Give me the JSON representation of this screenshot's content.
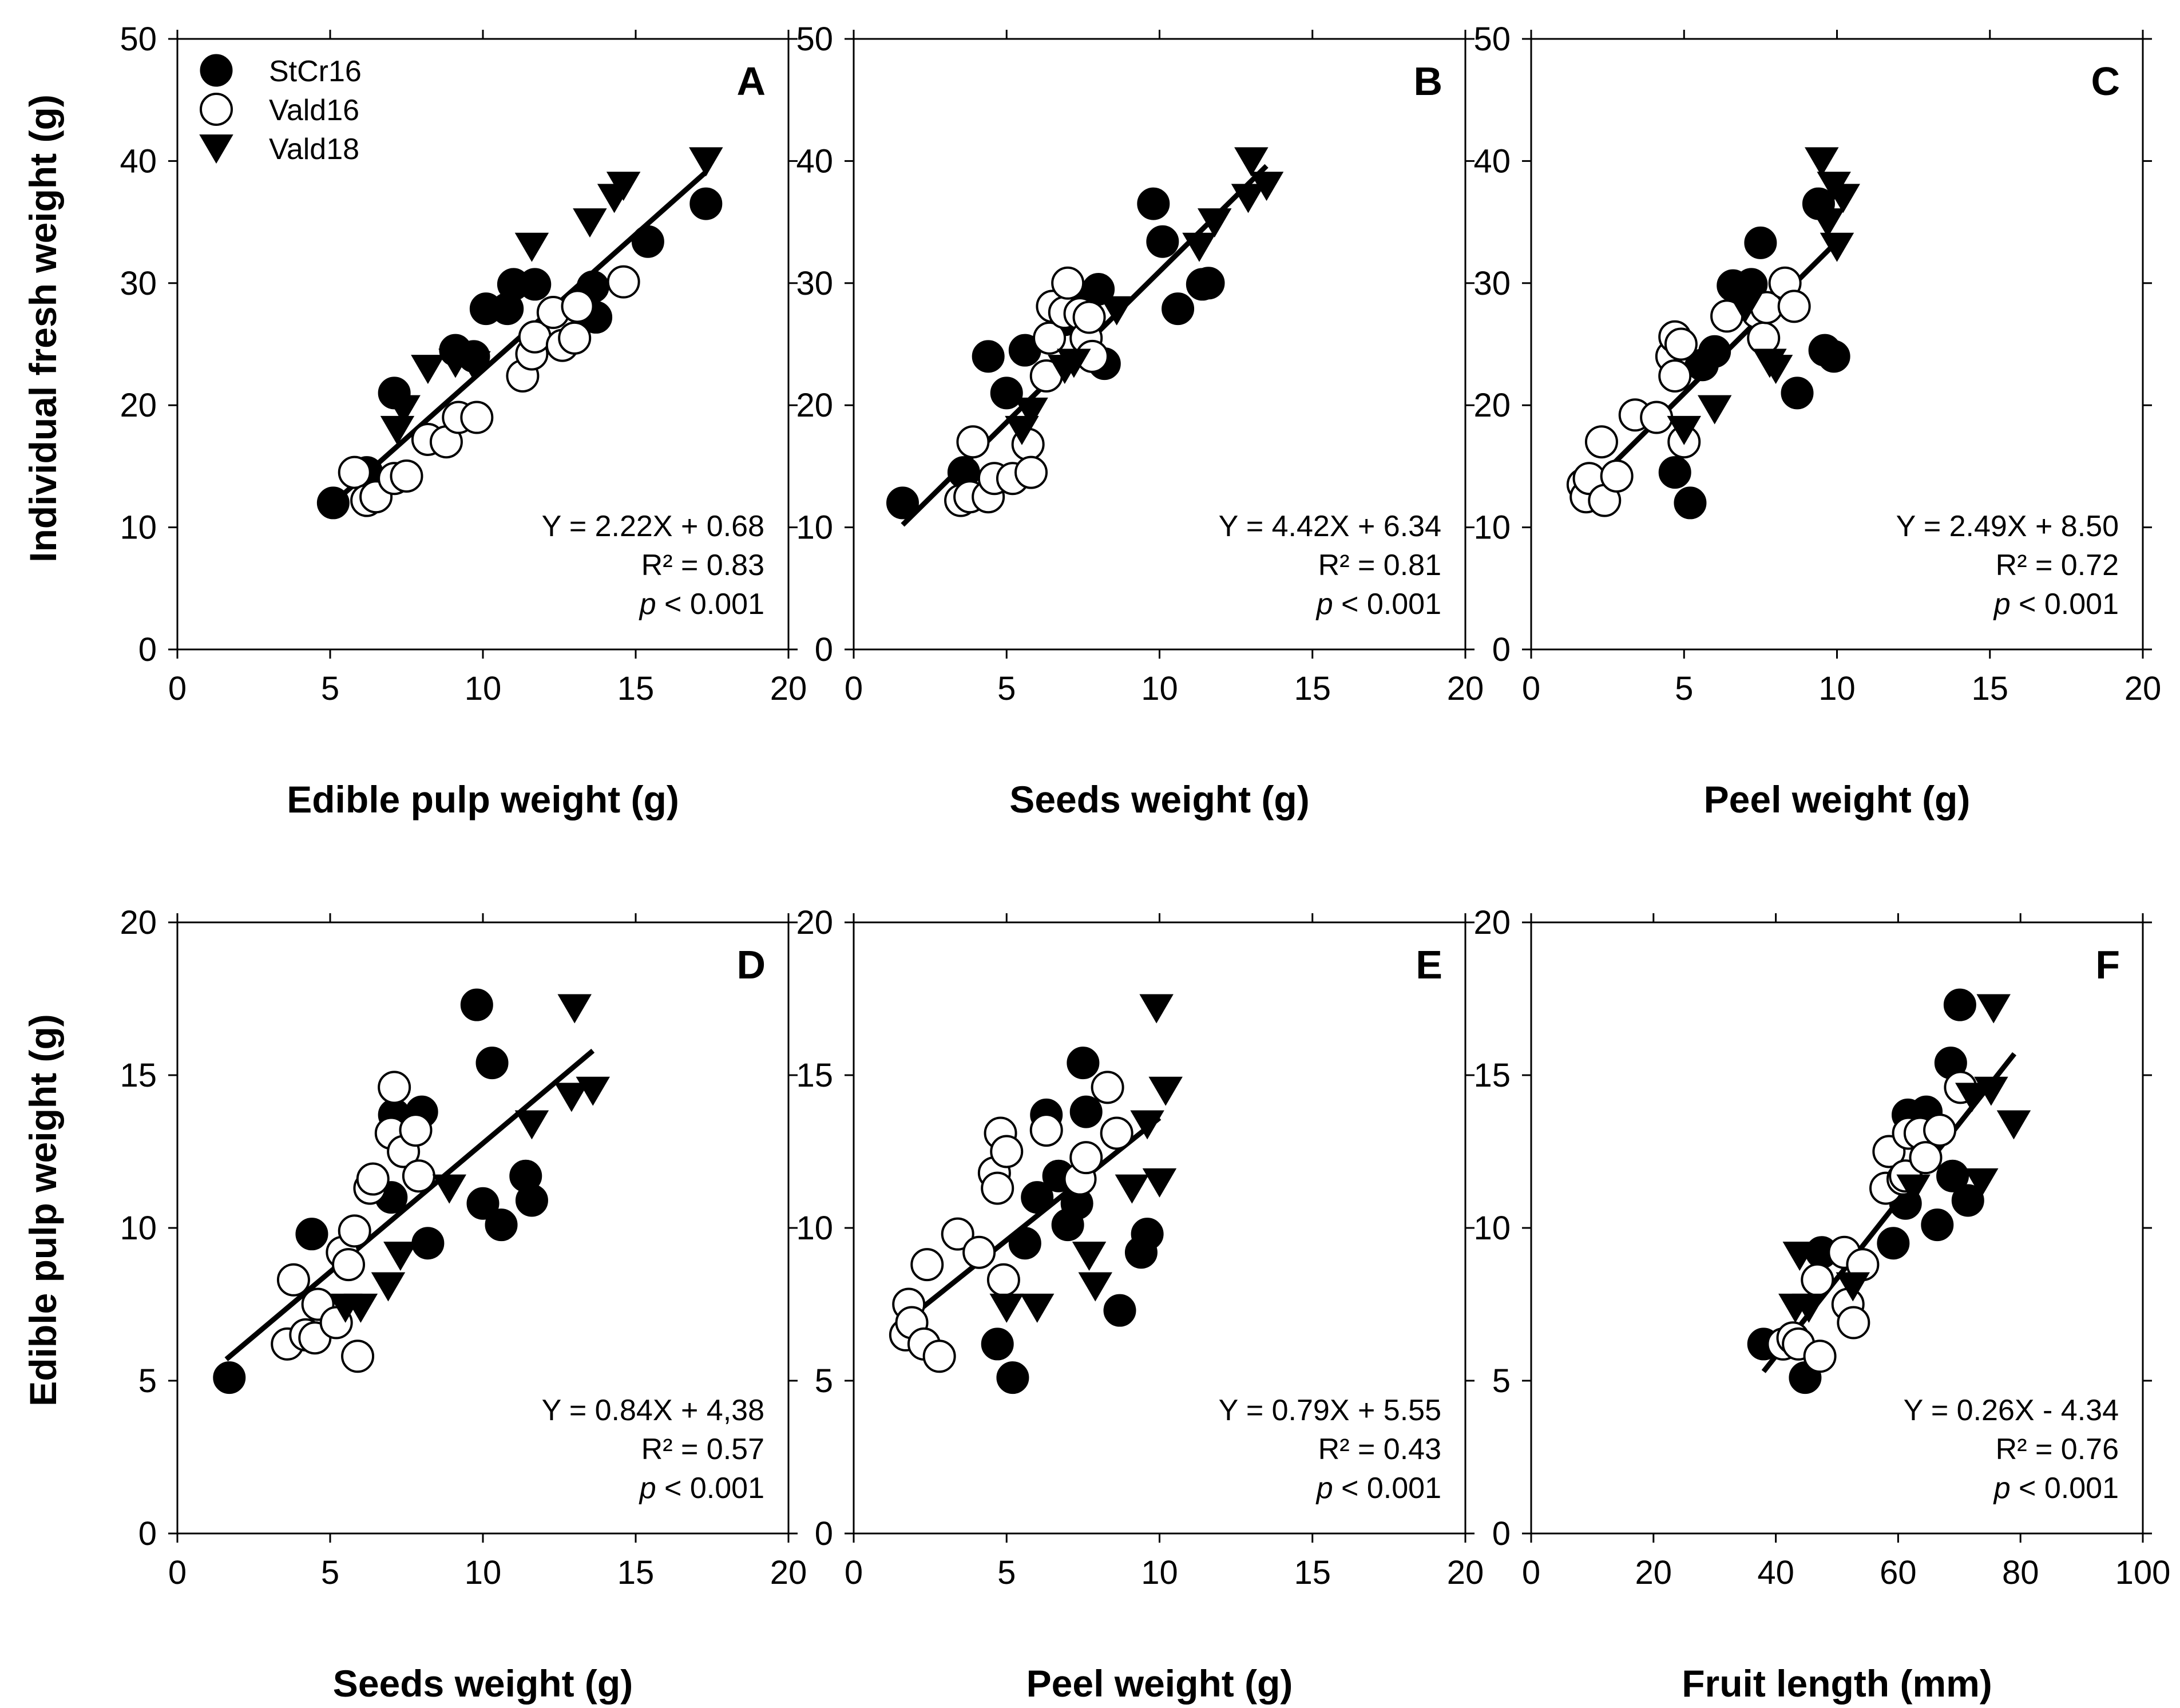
{
  "colors": {
    "ink": "#000000",
    "paper": "#ffffff"
  },
  "legend": [
    {
      "name": "StCr16",
      "marker": "filled-circle"
    },
    {
      "name": "Vald16",
      "marker": "open-circle"
    },
    {
      "name": "Vald18",
      "marker": "filled-triangle-down"
    }
  ],
  "chart_data": [
    {
      "type": "scatter",
      "id": "A",
      "letter": "A",
      "xlabel": "Edible pulp weight (g)",
      "ylabel": "Individual fresh weight (g)",
      "xlim": [
        0,
        20
      ],
      "ylim": [
        0,
        50
      ],
      "xticks": [
        0,
        5,
        10,
        15,
        20
      ],
      "yticks": [
        0,
        10,
        20,
        30,
        40,
        50
      ],
      "fit": {
        "x": [
          5.2,
          17.3
        ],
        "y": [
          12.2,
          39.1
        ]
      },
      "equation": "Y = 2.22X + 0.68",
      "r2": "R² = 0.83",
      "p_italic": "p",
      "p_rest": " < 0.001",
      "series": [
        {
          "name": "StCr16",
          "marker": "filled-circle",
          "x": [
            5.1,
            6.2,
            7.1,
            9.1,
            9.7,
            10.1,
            10.8,
            11.0,
            11.7,
            13.6,
            13.7,
            15.4,
            17.3
          ],
          "y": [
            12.0,
            14.5,
            21.0,
            24.5,
            24.0,
            27.9,
            27.9,
            29.9,
            29.9,
            29.7,
            27.2,
            33.4,
            36.5
          ]
        },
        {
          "name": "Vald16",
          "marker": "open-circle",
          "x": [
            5.8,
            6.2,
            6.5,
            7.1,
            7.5,
            8.2,
            8.8,
            9.2,
            9.8,
            11.3,
            11.6,
            11.7,
            12.3,
            12.6,
            13.0,
            13.1,
            14.6
          ],
          "y": [
            14.5,
            12.2,
            12.5,
            14.0,
            14.2,
            17.2,
            17.0,
            19.0,
            19.0,
            22.4,
            24.2,
            25.6,
            27.6,
            24.9,
            25.5,
            28.1,
            30.1
          ]
        },
        {
          "name": "Vald18",
          "marker": "filled-triangle-down",
          "x": [
            7.2,
            7.4,
            8.2,
            9.1,
            9.7,
            11.6,
            13.5,
            14.3,
            14.6,
            17.3
          ],
          "y": [
            18.0,
            19.7,
            23.0,
            23.5,
            23.3,
            33.0,
            35.0,
            37.0,
            38.0,
            40.0
          ]
        }
      ]
    },
    {
      "type": "scatter",
      "id": "B",
      "letter": "B",
      "xlabel": "Seeds weight (g)",
      "ylabel": "",
      "xlim": [
        0,
        20
      ],
      "ylim": [
        0,
        50
      ],
      "xticks": [
        0,
        5,
        10,
        15,
        20
      ],
      "yticks": [
        0,
        10,
        20,
        30,
        40,
        50
      ],
      "fit": {
        "x": [
          1.6,
          13.5
        ],
        "y": [
          10.2,
          39.6
        ]
      },
      "equation": "Y = 4.42X + 6.34",
      "r2": "R² = 0.81",
      "p_italic": "p",
      "p_rest": " < 0.001",
      "series": [
        {
          "name": "StCr16",
          "marker": "filled-circle",
          "x": [
            1.6,
            3.6,
            4.4,
            5.0,
            5.6,
            6.9,
            7.5,
            8.0,
            8.2,
            9.8,
            10.1,
            10.6,
            11.4,
            11.6
          ],
          "y": [
            12.0,
            14.5,
            24.0,
            21.0,
            24.5,
            27.0,
            28.0,
            29.5,
            23.4,
            36.5,
            33.4,
            27.9,
            29.9,
            30.0
          ]
        },
        {
          "name": "Vald16",
          "marker": "open-circle",
          "x": [
            3.5,
            3.8,
            3.9,
            4.4,
            4.6,
            5.2,
            5.7,
            5.8,
            6.3,
            6.4,
            6.5,
            6.9,
            7.0,
            7.4,
            7.6,
            7.7,
            7.8
          ],
          "y": [
            12.2,
            12.5,
            17.0,
            12.5,
            14.0,
            14.0,
            16.8,
            14.5,
            22.4,
            25.5,
            28.1,
            27.6,
            30.0,
            27.5,
            25.5,
            27.2,
            24.0
          ]
        },
        {
          "name": "Vald18",
          "marker": "filled-triangle-down",
          "x": [
            5.5,
            5.8,
            6.9,
            7.2,
            8.6,
            11.3,
            11.8,
            12.9,
            13.0,
            13.5
          ],
          "y": [
            18.0,
            19.5,
            23.0,
            23.5,
            27.8,
            33.0,
            35.0,
            37.0,
            40.0,
            38.0
          ]
        }
      ]
    },
    {
      "type": "scatter",
      "id": "C",
      "letter": "C",
      "xlabel": "Peel weight (g)",
      "ylabel": "",
      "xlim": [
        0,
        20
      ],
      "ylim": [
        0,
        50
      ],
      "xticks": [
        0,
        5,
        10,
        15,
        20
      ],
      "yticks": [
        0,
        10,
        20,
        30,
        40,
        50
      ],
      "fit": {
        "x": [
          2.0,
          10.0
        ],
        "y": [
          13.5,
          33.4
        ]
      },
      "equation": "Y = 2.49X + 8.50",
      "r2": "R² = 0.72",
      "p_italic": "p",
      "p_rest": " < 0.001",
      "series": [
        {
          "name": "StCr16",
          "marker": "filled-circle",
          "x": [
            4.7,
            5.2,
            5.6,
            6.0,
            6.6,
            7.2,
            7.5,
            7.6,
            8.7,
            9.4,
            9.6,
            9.9
          ],
          "y": [
            14.5,
            12.0,
            23.3,
            24.4,
            29.8,
            29.9,
            33.3,
            28.0,
            21.0,
            36.5,
            24.5,
            24.0
          ]
        },
        {
          "name": "Vald16",
          "marker": "open-circle",
          "x": [
            1.7,
            1.8,
            1.9,
            2.3,
            2.4,
            2.8,
            3.4,
            4.1,
            4.6,
            4.7,
            4.7,
            4.9,
            5.0,
            6.4,
            7.4,
            7.6,
            7.7,
            8.3,
            8.6
          ],
          "y": [
            13.5,
            12.5,
            14.0,
            17.0,
            12.2,
            14.2,
            19.2,
            19.0,
            24.0,
            22.4,
            25.6,
            25.0,
            17.0,
            27.3,
            27.6,
            25.5,
            28.0,
            30.0,
            28.1
          ]
        },
        {
          "name": "Vald18",
          "marker": "filled-triangle-down",
          "x": [
            5.0,
            6.0,
            7.0,
            7.8,
            8.0,
            9.5,
            9.7,
            9.9,
            10.0,
            10.2
          ],
          "y": [
            18.0,
            19.7,
            28.0,
            23.5,
            23.0,
            40.0,
            35.0,
            38.0,
            33.0,
            37.0
          ]
        }
      ]
    },
    {
      "type": "scatter",
      "id": "D",
      "letter": "D",
      "xlabel": "Seeds weight (g)",
      "ylabel": "Edible pulp weight (g)",
      "xlim": [
        0,
        20
      ],
      "ylim": [
        0,
        20
      ],
      "xticks": [
        0,
        5,
        10,
        15,
        20
      ],
      "yticks": [
        0,
        5,
        10,
        15,
        20
      ],
      "fit": {
        "x": [
          1.6,
          13.6
        ],
        "y": [
          5.7,
          15.8
        ]
      },
      "equation": "Y = 0.84X + 4,38",
      "r2": "R² = 0.57",
      "p_italic": "p",
      "p_rest": " < 0.001",
      "series": [
        {
          "name": "StCr16",
          "marker": "filled-circle",
          "x": [
            1.7,
            4.4,
            7.0,
            7.1,
            8.0,
            8.2,
            9.8,
            10.0,
            10.3,
            10.6,
            11.4,
            11.6
          ],
          "y": [
            5.1,
            9.8,
            11.0,
            13.7,
            13.8,
            9.5,
            17.3,
            10.8,
            15.4,
            10.1,
            11.7,
            10.9
          ]
        },
        {
          "name": "Vald16",
          "marker": "open-circle",
          "x": [
            3.6,
            3.8,
            4.2,
            4.5,
            4.6,
            5.2,
            5.4,
            5.6,
            5.8,
            5.9,
            6.3,
            6.4,
            7.0,
            7.1,
            7.4,
            7.8,
            7.9
          ],
          "y": [
            6.2,
            8.3,
            6.5,
            6.4,
            7.5,
            6.9,
            9.2,
            8.8,
            9.9,
            5.8,
            11.3,
            11.6,
            13.1,
            14.6,
            12.5,
            13.2,
            11.7
          ]
        },
        {
          "name": "Vald18",
          "marker": "filled-triangle-down",
          "x": [
            5.5,
            6.0,
            6.9,
            7.3,
            8.9,
            11.6,
            12.9,
            13.0,
            13.6
          ],
          "y": [
            7.4,
            7.4,
            8.1,
            9.1,
            11.3,
            13.4,
            14.3,
            17.2,
            14.5
          ]
        }
      ]
    },
    {
      "type": "scatter",
      "id": "E",
      "letter": "E",
      "xlabel": "Peel weight (g)",
      "ylabel": "",
      "xlim": [
        0,
        20
      ],
      "ylim": [
        0,
        20
      ],
      "xticks": [
        0,
        5,
        10,
        15,
        20
      ],
      "yticks": [
        0,
        5,
        10,
        15,
        20
      ],
      "fit": {
        "x": [
          2.0,
          10.0
        ],
        "y": [
          7.2,
          13.6
        ]
      },
      "equation": "Y = 0.79X + 5.55",
      "r2": "R² = 0.43",
      "p_italic": "p",
      "p_rest": " < 0.001",
      "series": [
        {
          "name": "StCr16",
          "marker": "filled-circle",
          "x": [
            4.7,
            5.2,
            5.6,
            6.0,
            6.3,
            6.7,
            7.0,
            7.3,
            7.5,
            7.6,
            8.7,
            9.4,
            9.6
          ],
          "y": [
            6.2,
            5.1,
            9.5,
            11.0,
            13.7,
            11.7,
            10.1,
            10.8,
            15.4,
            13.8,
            7.3,
            9.2,
            9.8
          ]
        },
        {
          "name": "Vald16",
          "marker": "open-circle",
          "x": [
            1.7,
            1.8,
            1.9,
            2.3,
            2.4,
            2.8,
            3.4,
            4.1,
            4.6,
            4.7,
            4.8,
            4.9,
            5.0,
            6.3,
            7.4,
            7.6,
            8.3,
            8.6
          ],
          "y": [
            6.5,
            7.5,
            6.9,
            6.2,
            8.8,
            5.8,
            9.8,
            9.2,
            11.8,
            11.3,
            13.1,
            8.3,
            12.5,
            13.2,
            11.6,
            12.3,
            14.6,
            13.1
          ]
        },
        {
          "name": "Vald18",
          "marker": "filled-triangle-down",
          "x": [
            5.0,
            6.0,
            7.7,
            7.9,
            9.1,
            9.6,
            9.9,
            10.0,
            10.2
          ],
          "y": [
            7.4,
            7.4,
            9.1,
            8.1,
            11.3,
            13.4,
            17.2,
            11.5,
            14.5
          ]
        }
      ]
    },
    {
      "type": "scatter",
      "id": "F",
      "letter": "F",
      "xlabel": "Fruit length (mm)",
      "ylabel": "",
      "xlim": [
        0,
        100
      ],
      "ylim": [
        0,
        20
      ],
      "xticks": [
        0,
        20,
        40,
        60,
        80,
        100
      ],
      "yticks": [
        0,
        5,
        10,
        15,
        20
      ],
      "fit": {
        "x": [
          38.0,
          79.0
        ],
        "y": [
          5.3,
          15.7
        ]
      },
      "equation": "Y = 0.26X - 4.34",
      "r2": "R² = 0.76",
      "p_italic": "p",
      "p_rest": " < 0.001",
      "series": [
        {
          "name": "StCr16",
          "marker": "filled-circle",
          "x": [
            38.0,
            44.8,
            47.5,
            59.2,
            61.2,
            61.6,
            64.6,
            66.4,
            68.6,
            68.9,
            70.1,
            71.4
          ],
          "y": [
            6.2,
            5.1,
            9.2,
            9.5,
            10.8,
            13.7,
            13.8,
            10.1,
            15.4,
            11.7,
            17.3,
            10.9
          ]
        },
        {
          "name": "Vald16",
          "marker": "open-circle",
          "x": [
            41.2,
            42.8,
            43.7,
            46.8,
            47.2,
            51.2,
            51.8,
            52.7,
            54.2,
            58.0,
            58.5,
            60.8,
            61.2,
            61.7,
            63.6,
            64.5,
            66.8,
            70.2
          ],
          "y": [
            6.2,
            6.4,
            6.2,
            8.3,
            5.8,
            9.2,
            7.5,
            6.9,
            8.8,
            11.3,
            12.5,
            11.6,
            11.7,
            13.1,
            13.1,
            12.3,
            13.2,
            14.6
          ]
        },
        {
          "name": "Vald18",
          "marker": "filled-triangle-down",
          "x": [
            43.2,
            43.9,
            45.4,
            52.6,
            62.5,
            72.1,
            73.6,
            75.2,
            75.6,
            78.9
          ],
          "y": [
            7.4,
            9.1,
            7.4,
            8.1,
            11.3,
            14.3,
            11.5,
            14.5,
            17.2,
            13.4
          ]
        }
      ]
    }
  ]
}
